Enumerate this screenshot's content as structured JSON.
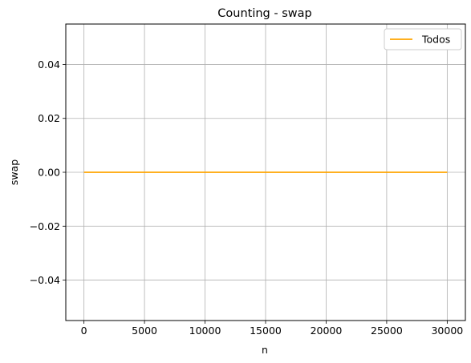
{
  "chart_data": {
    "type": "line",
    "title": "Counting - swap",
    "xlabel": "n",
    "ylabel": "swap",
    "xlim": [
      -1500,
      31500
    ],
    "ylim": [
      -0.055,
      0.055
    ],
    "xticks": [
      0,
      5000,
      10000,
      15000,
      20000,
      25000,
      30000
    ],
    "xtick_labels": [
      "0",
      "5000",
      "10000",
      "15000",
      "20000",
      "25000",
      "30000"
    ],
    "yticks": [
      -0.04,
      -0.02,
      0.0,
      0.02,
      0.04
    ],
    "ytick_labels": [
      "−0.04",
      "−0.02",
      "0.00",
      "0.02",
      "0.04"
    ],
    "grid": true,
    "legend_position": "top-right",
    "series": [
      {
        "name": "Todos",
        "color": "#ffa500",
        "x": [
          0,
          30000
        ],
        "y": [
          0,
          0
        ]
      }
    ]
  }
}
